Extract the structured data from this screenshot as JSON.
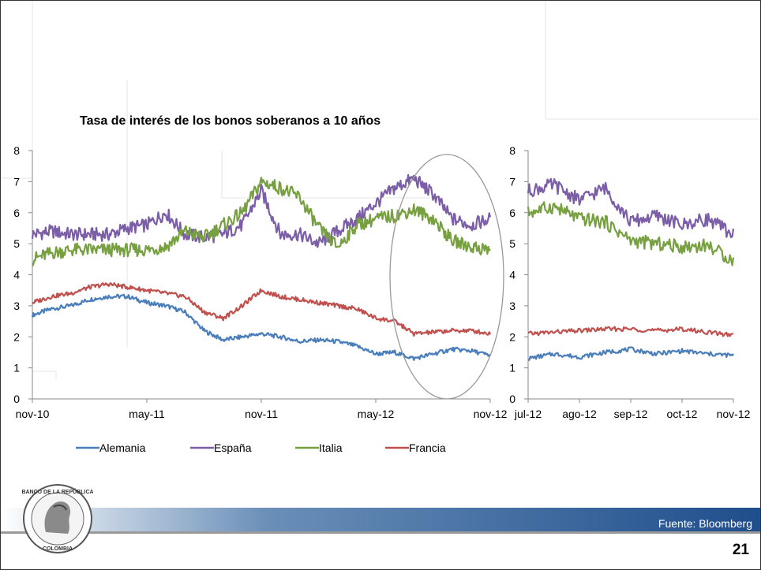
{
  "slide": {
    "title": "Tasa de interés de los bonos soberanos a 10 años",
    "source": "Fuente: Bloomberg",
    "page_number": "21",
    "logo": "Banco de la República Colombia seal"
  },
  "chart_data": [
    {
      "type": "line",
      "title": "Tasa de interés de los bonos soberanos a 10 años",
      "x_ticks": [
        "nov-10",
        "may-11",
        "nov-11",
        "may-12",
        "nov-12"
      ],
      "y_ticks": [
        0,
        1,
        2,
        3,
        4,
        5,
        6,
        7,
        8
      ],
      "ylim": [
        0,
        8
      ],
      "grid": false,
      "legend_position": "bottom",
      "annotation": "ellipse highlighting jul-12 to nov-12",
      "series": [
        {
          "name": "Alemania",
          "color": "#4a7ebb",
          "x": [
            "nov-10",
            "dic-10",
            "ene-11",
            "feb-11",
            "mar-11",
            "abr-11",
            "may-11",
            "jun-11",
            "jul-11",
            "ago-11",
            "sep-11",
            "oct-11",
            "nov-11",
            "dic-11",
            "ene-12",
            "feb-12",
            "mar-12",
            "abr-12",
            "may-12",
            "jun-12",
            "jul-12",
            "ago-12",
            "sep-12",
            "oct-12",
            "nov-12"
          ],
          "values": [
            2.7,
            2.9,
            3.0,
            3.2,
            3.3,
            3.3,
            3.1,
            3.0,
            2.8,
            2.2,
            1.9,
            2.0,
            2.1,
            2.0,
            1.85,
            1.9,
            1.85,
            1.7,
            1.45,
            1.5,
            1.3,
            1.45,
            1.6,
            1.55,
            1.4
          ]
        },
        {
          "name": "España",
          "color": "#7b5ea7",
          "x": [
            "nov-10",
            "dic-10",
            "ene-11",
            "feb-11",
            "mar-11",
            "abr-11",
            "may-11",
            "jun-11",
            "jul-11",
            "ago-11",
            "sep-11",
            "oct-11",
            "nov-11",
            "dic-11",
            "ene-12",
            "feb-12",
            "mar-12",
            "abr-12",
            "may-12",
            "jun-12",
            "jul-12",
            "ago-12",
            "sep-12",
            "oct-12",
            "nov-12"
          ],
          "values": [
            5.3,
            5.4,
            5.3,
            5.3,
            5.3,
            5.5,
            5.6,
            6.0,
            5.3,
            5.2,
            5.3,
            5.6,
            6.7,
            5.3,
            5.3,
            5.0,
            5.4,
            5.8,
            6.3,
            6.8,
            7.1,
            6.6,
            5.8,
            5.6,
            5.8
          ]
        },
        {
          "name": "Italia",
          "color": "#77a040",
          "x": [
            "nov-10",
            "dic-10",
            "ene-11",
            "feb-11",
            "mar-11",
            "abr-11",
            "may-11",
            "jun-11",
            "jul-11",
            "ago-11",
            "sep-11",
            "oct-11",
            "nov-11",
            "dic-11",
            "ene-12",
            "feb-12",
            "mar-12",
            "abr-12",
            "may-12",
            "jun-12",
            "jul-12",
            "ago-12",
            "sep-12",
            "oct-12",
            "nov-12"
          ],
          "values": [
            4.5,
            4.7,
            4.8,
            4.8,
            4.8,
            4.8,
            4.8,
            4.9,
            5.4,
            5.2,
            5.6,
            6.0,
            7.0,
            6.8,
            6.5,
            5.5,
            4.9,
            5.6,
            5.8,
            5.9,
            6.1,
            5.8,
            5.1,
            4.9,
            4.8
          ]
        },
        {
          "name": "Francia",
          "color": "#c0504d",
          "x": [
            "nov-10",
            "dic-10",
            "ene-11",
            "feb-11",
            "mar-11",
            "abr-11",
            "may-11",
            "jun-11",
            "jul-11",
            "ago-11",
            "sep-11",
            "oct-11",
            "nov-11",
            "dic-11",
            "ene-12",
            "feb-12",
            "mar-12",
            "abr-12",
            "may-12",
            "jun-12",
            "jul-12",
            "ago-12",
            "sep-12",
            "oct-12",
            "nov-12"
          ],
          "values": [
            3.1,
            3.3,
            3.4,
            3.6,
            3.7,
            3.6,
            3.5,
            3.4,
            3.3,
            2.8,
            2.6,
            3.0,
            3.5,
            3.3,
            3.2,
            3.1,
            3.0,
            2.9,
            2.6,
            2.5,
            2.1,
            2.15,
            2.2,
            2.2,
            2.1
          ]
        }
      ]
    },
    {
      "type": "line",
      "x_ticks": [
        "jul-12",
        "ago-12",
        "sep-12",
        "oct-12",
        "nov-12"
      ],
      "y_ticks": [
        0,
        1,
        2,
        3,
        4,
        5,
        6,
        7,
        8
      ],
      "ylim": [
        0,
        8
      ],
      "grid": false,
      "series": [
        {
          "name": "Alemania",
          "color": "#4a7ebb",
          "x": [
            "jul-12",
            "jul-12b",
            "ago-12",
            "ago-12b",
            "sep-12",
            "sep-12b",
            "oct-12",
            "oct-12b",
            "nov-12"
          ],
          "values": [
            1.3,
            1.45,
            1.35,
            1.5,
            1.6,
            1.45,
            1.55,
            1.45,
            1.4
          ]
        },
        {
          "name": "España",
          "color": "#7b5ea7",
          "x": [
            "jul-12",
            "jul-12b",
            "ago-12",
            "ago-12b",
            "sep-12",
            "sep-12b",
            "oct-12",
            "oct-12b",
            "nov-12"
          ],
          "values": [
            6.7,
            6.9,
            6.4,
            6.8,
            5.7,
            5.9,
            5.6,
            5.8,
            5.3
          ]
        },
        {
          "name": "Italia",
          "color": "#77a040",
          "x": [
            "jul-12",
            "jul-12b",
            "ago-12",
            "ago-12b",
            "sep-12",
            "sep-12b",
            "oct-12",
            "oct-12b",
            "nov-12"
          ],
          "values": [
            6.0,
            6.2,
            5.8,
            5.7,
            5.1,
            5.0,
            4.9,
            4.95,
            4.45
          ]
        },
        {
          "name": "Francia",
          "color": "#c0504d",
          "x": [
            "jul-12",
            "jul-12b",
            "ago-12",
            "ago-12b",
            "sep-12",
            "sep-12b",
            "oct-12",
            "oct-12b",
            "nov-12"
          ],
          "values": [
            2.1,
            2.15,
            2.2,
            2.25,
            2.25,
            2.2,
            2.25,
            2.15,
            2.05
          ]
        }
      ]
    }
  ]
}
